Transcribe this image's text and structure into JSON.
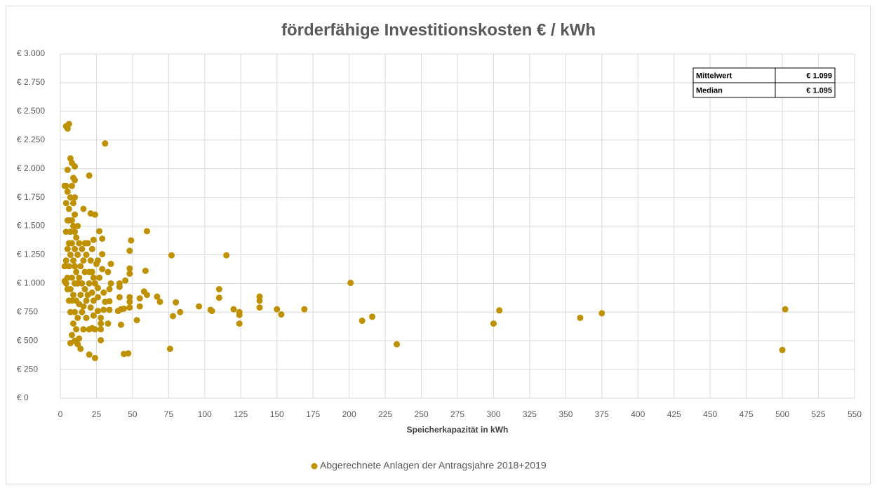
{
  "chart_data": {
    "type": "scatter",
    "title": "förderfähige Investitionskosten € / kWh",
    "x_label": "Speicherkapazität in kWh",
    "xlim": [
      0,
      550
    ],
    "xticks": [
      0,
      25,
      50,
      75,
      100,
      125,
      150,
      175,
      200,
      225,
      250,
      275,
      300,
      325,
      350,
      375,
      400,
      425,
      450,
      475,
      500,
      525,
      550
    ],
    "ylim": [
      0,
      3000
    ],
    "yticks": [
      {
        "value": 0,
        "label": "€ 0"
      },
      {
        "value": 250,
        "label": "€ 250"
      },
      {
        "value": 500,
        "label": "€ 500"
      },
      {
        "value": 750,
        "label": "€ 750"
      },
      {
        "value": 1000,
        "label": "€ 1.000"
      },
      {
        "value": 1250,
        "label": "€ 1.250"
      },
      {
        "value": 1500,
        "label": "€ 1.500"
      },
      {
        "value": 1750,
        "label": "€ 1.750"
      },
      {
        "value": 2000,
        "label": "€ 2.000"
      },
      {
        "value": 2250,
        "label": "€ 2.250"
      },
      {
        "value": 2500,
        "label": "€ 2.500"
      },
      {
        "value": 2750,
        "label": "€ 2.750"
      },
      {
        "value": 3000,
        "label": "€ 3.000"
      }
    ],
    "grid": true,
    "legend": "bottom",
    "stats_table": [
      [
        "Mittelwert",
        "€ 1.099"
      ],
      [
        "Median",
        "€ 1.095"
      ]
    ],
    "x": [
      201,
      209,
      216,
      233,
      300,
      304,
      360,
      375,
      500,
      502,
      169,
      153,
      150,
      138,
      138,
      138,
      124,
      124,
      124,
      120,
      115,
      110,
      110,
      105,
      104,
      96,
      83,
      80,
      78,
      77,
      76,
      69,
      67,
      60,
      60,
      59,
      58,
      55,
      55,
      53,
      49,
      48,
      48,
      48,
      48,
      48,
      48,
      47,
      45,
      44,
      44,
      42,
      42,
      41,
      41,
      41,
      40,
      35,
      35,
      34,
      34,
      34,
      33,
      33,
      31,
      31,
      30,
      30,
      29,
      29,
      29,
      28,
      28,
      28,
      28,
      27,
      27,
      26,
      26,
      26,
      26,
      25,
      24,
      24,
      24,
      24,
      23,
      23,
      23,
      23,
      22,
      22,
      22,
      22,
      21,
      21,
      21,
      20,
      20,
      20,
      20,
      20,
      19,
      19,
      18,
      18,
      18,
      17,
      17,
      17,
      16,
      16,
      16,
      16,
      15,
      15,
      15,
      14,
      14,
      14,
      13,
      13,
      13,
      13,
      12,
      12,
      12,
      12,
      12,
      11,
      11,
      11,
      11,
      10,
      10,
      10,
      10,
      10,
      10,
      10,
      10,
      10,
      10,
      9,
      9,
      9,
      9,
      9,
      9,
      8,
      8,
      8,
      8,
      8,
      8,
      8,
      7,
      7,
      7,
      7,
      7,
      7,
      7,
      6,
      6,
      6,
      6,
      6,
      6,
      5,
      5,
      5,
      5,
      5,
      5,
      5,
      4,
      4,
      4,
      4,
      4,
      4,
      3,
      3,
      3
    ],
    "series": [
      {
        "name": "Abgerechnete Anlagen der Antragsjahre 2018+2019",
        "color": "#bf9000",
        "values": [
          1005,
          675,
          710,
          470,
          650,
          765,
          700,
          740,
          420,
          775,
          775,
          730,
          775,
          885,
          850,
          790,
          750,
          725,
          650,
          775,
          1245,
          950,
          875,
          760,
          770,
          800,
          750,
          835,
          715,
          1245,
          430,
          840,
          885,
          1455,
          900,
          1110,
          930,
          870,
          800,
          680,
          1375,
          1285,
          1130,
          1085,
          880,
          840,
          790,
          390,
          1025,
          385,
          780,
          775,
          640,
          1000,
          970,
          880,
          760,
          1170,
          1000,
          950,
          845,
          770,
          650,
          1100,
          840,
          2220,
          770,
          920,
          1390,
          1255,
          1125,
          700,
          650,
          600,
          505,
          1455,
          1050,
          1200,
          960,
          880,
          760,
          1170,
          1600,
          350,
          600,
          1000,
          1050,
          850,
          720,
          1380,
          1300,
          1100,
          920,
          610,
          1610,
          1200,
          790,
          1940,
          380,
          1000,
          1100,
          600,
          1350,
          900,
          1250,
          850,
          700,
          1350,
          1100,
          950,
          1650,
          1200,
          800,
          600,
          1000,
          1300,
          750,
          1150,
          900,
          430,
          1350,
          1050,
          820,
          520,
          1500,
          1250,
          1000,
          700,
          470,
          1400,
          1100,
          850,
          600,
          2020,
          1900,
          1750,
          1600,
          1450,
          1300,
          1150,
          1000,
          750,
          500,
          1920,
          1700,
          1500,
          1200,
          900,
          650,
          2050,
          1850,
          1550,
          1350,
          1050,
          850,
          550,
          2090,
          1750,
          1450,
          1250,
          950,
          750,
          480,
          2390,
          1650,
          1550,
          1350,
          1150,
          850,
          2350,
          1990,
          1800,
          1550,
          1300,
          1050,
          950,
          2370,
          1850,
          1700,
          1450,
          1200,
          1000,
          1850,
          1150,
          1020
        ]
      }
    ]
  }
}
